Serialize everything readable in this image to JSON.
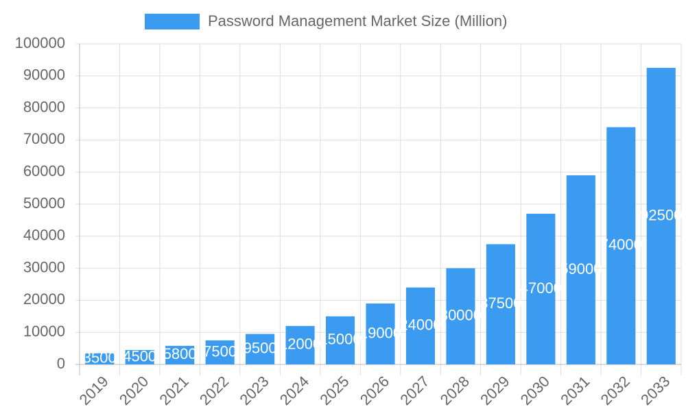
{
  "chart_data": {
    "type": "bar",
    "categories": [
      "2019",
      "2020",
      "2021",
      "2022",
      "2023",
      "2024",
      "2025",
      "2026",
      "2027",
      "2028",
      "2029",
      "2030",
      "2031",
      "2032",
      "2033"
    ],
    "series": [
      {
        "name": "Password Management Market Size (Million)",
        "color": "#3a9bf0",
        "values": [
          3500,
          4500,
          5800,
          7500,
          9500,
          12000,
          15000,
          19000,
          24000,
          30000,
          37500,
          47000,
          59000,
          74000,
          92500
        ]
      }
    ],
    "ylim": [
      0,
      100000
    ],
    "yticks": [
      0,
      10000,
      20000,
      30000,
      40000,
      50000,
      60000,
      70000,
      80000,
      90000,
      100000
    ],
    "grid": true,
    "legend": "top"
  }
}
